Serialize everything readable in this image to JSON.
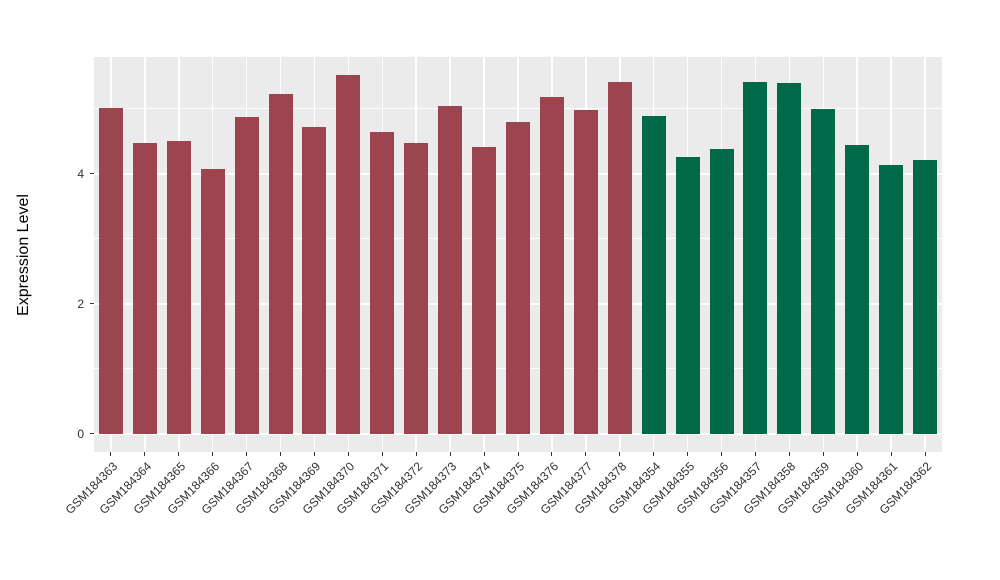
{
  "chart_data": {
    "type": "bar",
    "title": "",
    "xlabel": "",
    "ylabel": "Expression Level",
    "categories": [
      "GSM184363",
      "GSM184364",
      "GSM184365",
      "GSM184366",
      "GSM184367",
      "GSM184368",
      "GSM184369",
      "GSM184370",
      "GSM184371",
      "GSM184372",
      "GSM184373",
      "GSM184374",
      "GSM184375",
      "GSM184376",
      "GSM184377",
      "GSM184378",
      "GSM184354",
      "GSM184355",
      "GSM184356",
      "GSM184357",
      "GSM184358",
      "GSM184359",
      "GSM184360",
      "GSM184361",
      "GSM184362"
    ],
    "series": [
      {
        "name": "Expression Level",
        "values": [
          5.02,
          4.47,
          4.51,
          4.08,
          4.88,
          5.23,
          4.72,
          5.53,
          4.65,
          4.47,
          5.04,
          4.41,
          4.8,
          5.19,
          4.98,
          5.41,
          4.89,
          4.26,
          4.39,
          5.41,
          5.4,
          5.0,
          4.45,
          4.14,
          4.22
        ]
      }
    ],
    "bar_groups": [
      "group1",
      "group1",
      "group1",
      "group1",
      "group1",
      "group1",
      "group1",
      "group1",
      "group1",
      "group1",
      "group1",
      "group1",
      "group1",
      "group1",
      "group1",
      "group1",
      "group2",
      "group2",
      "group2",
      "group2",
      "group2",
      "group2",
      "group2",
      "group2",
      "group2"
    ],
    "group_colors": {
      "group1": "#9C4551",
      "group2": "#006948"
    },
    "yticks": [
      0,
      2,
      4
    ],
    "yticks_minor": [
      1,
      3,
      5
    ],
    "ylim": [
      -0.28,
      5.8
    ],
    "grid": true,
    "legend": "none",
    "panel_bg": "#EBEBEB",
    "grid_color": "#FFFFFF",
    "axis_text_color": "#303030",
    "axis_title_color": "#000000"
  }
}
